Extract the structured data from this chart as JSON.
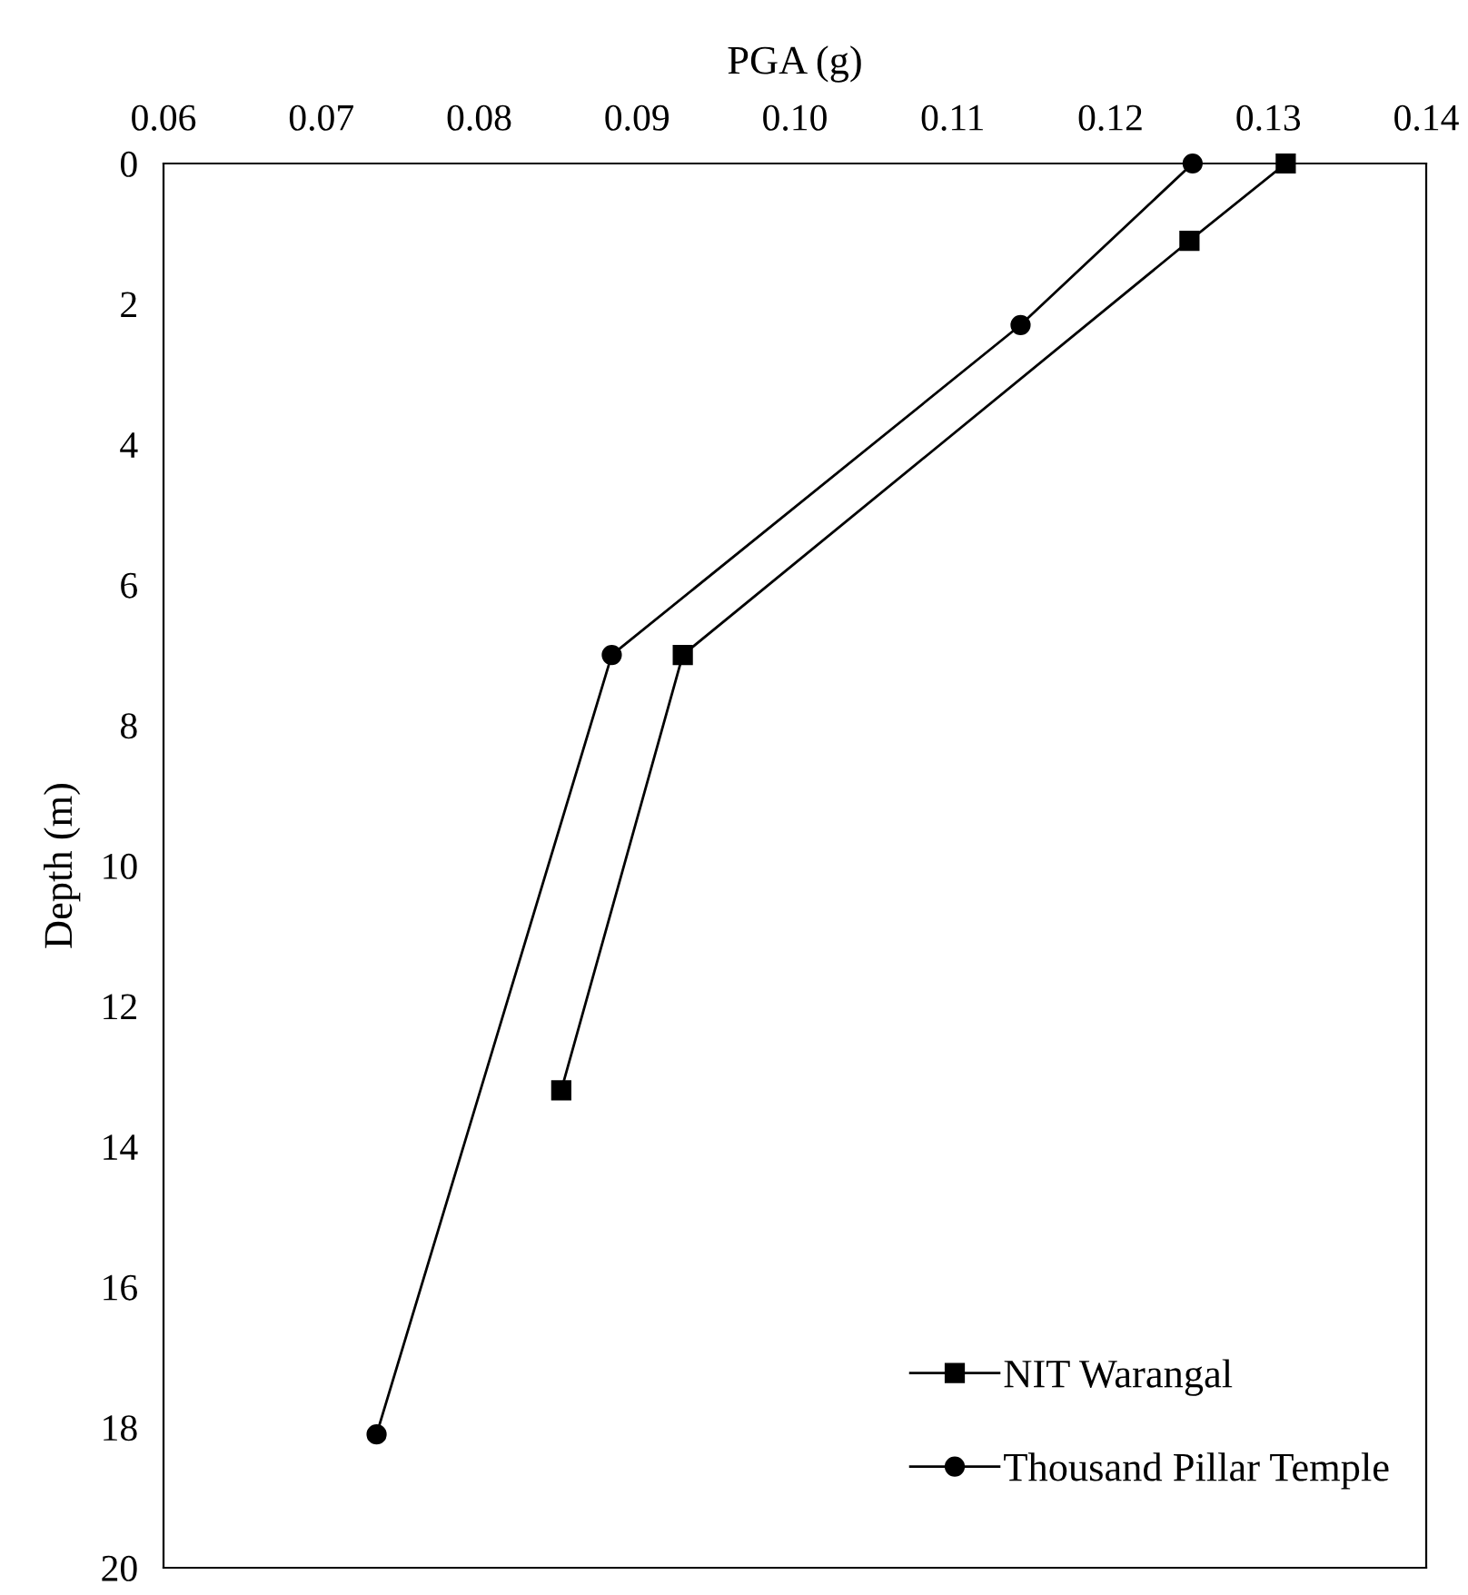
{
  "chart_data": {
    "type": "line",
    "xlabel": "PGA (g)",
    "ylabel": "Depth (m)",
    "xlim": [
      0.06,
      0.14
    ],
    "xticks": [
      {
        "value": 0.06,
        "label": "0.06"
      },
      {
        "value": 0.07,
        "label": "0.07"
      },
      {
        "value": 0.08,
        "label": "0.08"
      },
      {
        "value": 0.09,
        "label": "0.09"
      },
      {
        "value": 0.1,
        "label": "0.10"
      },
      {
        "value": 0.11,
        "label": "0.11"
      },
      {
        "value": 0.12,
        "label": "0.12"
      },
      {
        "value": 0.13,
        "label": "0.13"
      },
      {
        "value": 0.14,
        "label": "0.14"
      }
    ],
    "ylim": [
      20,
      0
    ],
    "yticks": [
      0,
      2,
      4,
      6,
      8,
      10,
      12,
      14,
      16,
      18,
      20
    ],
    "grid": false,
    "legend": "bottom right",
    "line_style": "solid",
    "series": [
      {
        "name": "NIT Warangal",
        "color": "#000000",
        "marker": "square",
        "x": [
          0.1311,
          0.125,
          0.0929,
          0.0852
        ],
        "values": [
          0,
          1.1,
          7.0,
          13.2
        ]
      },
      {
        "name": "Thousand Pillar Temple",
        "color": "#000000",
        "marker": "circle",
        "x": [
          0.1252,
          0.1143,
          0.0884,
          0.0735
        ],
        "values": [
          0,
          2.3,
          7.0,
          18.1
        ]
      }
    ]
  }
}
